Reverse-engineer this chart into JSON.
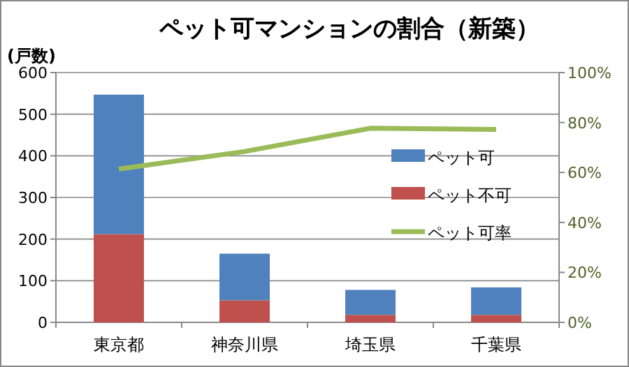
{
  "chart_data": {
    "type": "bar",
    "stacked": true,
    "title": "ペット可マンションの割合（新築）",
    "ylabel": "(戸数)",
    "categories": [
      "東京都",
      "神奈川県",
      "埼玉県",
      "千葉県"
    ],
    "series": [
      {
        "name": "ペット不可",
        "color": "#c0504d",
        "values": [
          212,
          53,
          18,
          18
        ]
      },
      {
        "name": "ペット可",
        "color": "#4f81bd",
        "values": [
          335,
          112,
          60,
          66
        ]
      },
      {
        "name": "ペット可率",
        "type": "line",
        "axis": "y2",
        "color": "#9bbb59",
        "values": [
          61.4,
          68.4,
          77.7,
          77.2
        ]
      }
    ],
    "ylim": [
      0,
      600
    ],
    "yticks": [
      0,
      100,
      200,
      300,
      400,
      500,
      600
    ],
    "y2lim": [
      0,
      100
    ],
    "y2ticks": [
      {
        "value": 0,
        "label": "0%"
      },
      {
        "value": 20,
        "label": "20%"
      },
      {
        "value": 40,
        "label": "40%"
      },
      {
        "value": 60,
        "label": "60%"
      },
      {
        "value": 80,
        "label": "80%"
      },
      {
        "value": 100,
        "label": "100%"
      }
    ],
    "grid": "y",
    "legend": "right",
    "marker": "none"
  }
}
